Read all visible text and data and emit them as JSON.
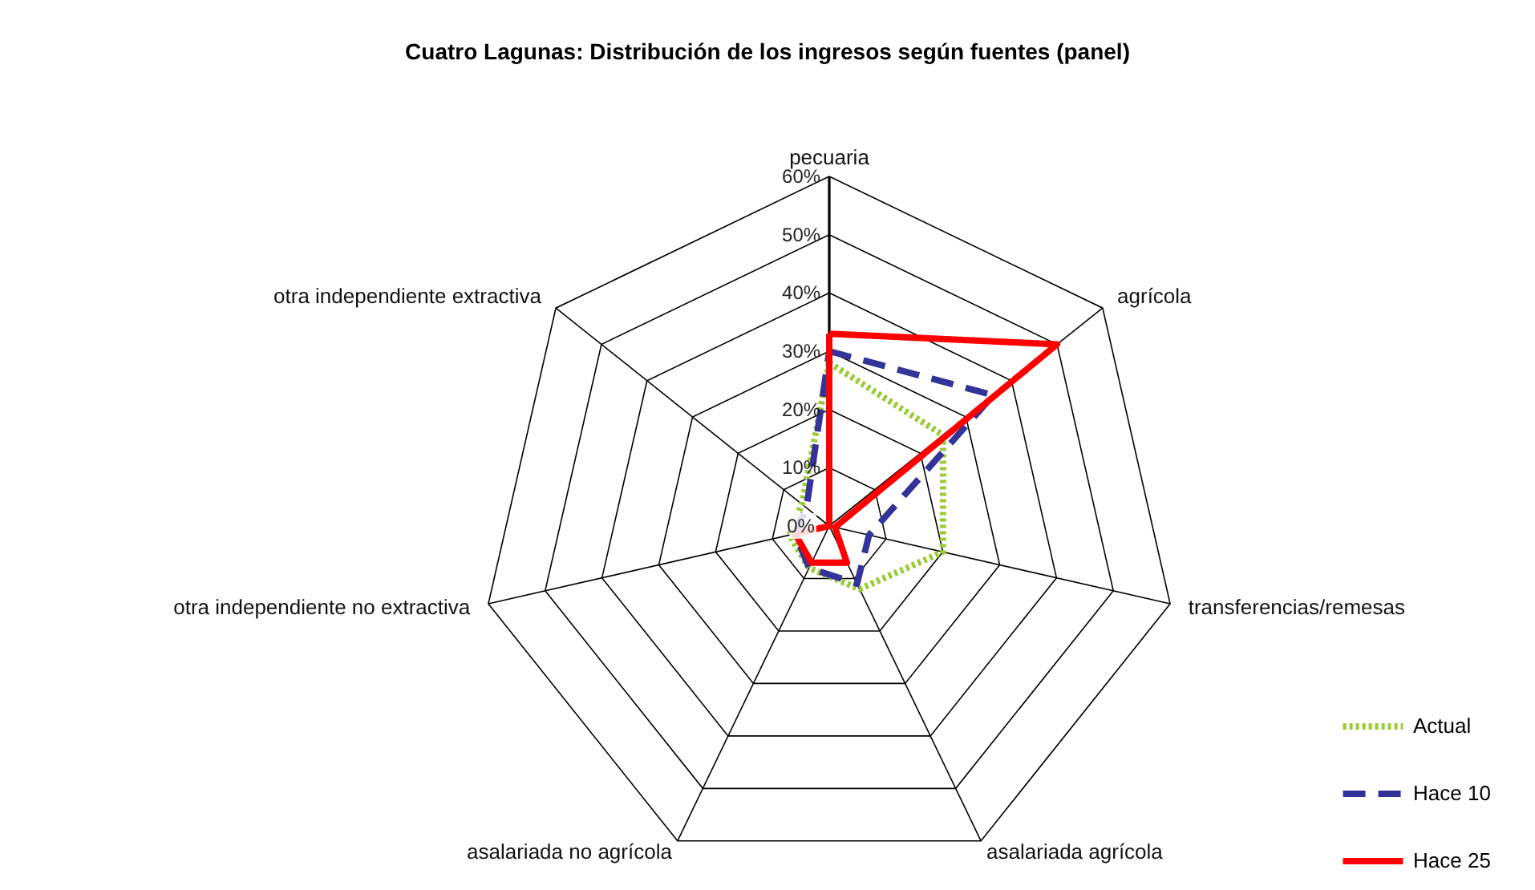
{
  "chart_data": {
    "type": "radar",
    "title": "Cuatro Lagunas: Distribución de los ingresos según fuentes (panel)",
    "categories": [
      "pecuaria",
      "agrícola",
      "transferencias/remesas",
      "asalariada agrícola",
      "asalariada no agrícola",
      "otra independiente  no extractiva",
      "otra independiente  extractiva"
    ],
    "series": [
      {
        "name": "Actual",
        "color": "#99cc33",
        "line_style": "dotted",
        "values": [
          28,
          25,
          20,
          12,
          8,
          7,
          6
        ]
      },
      {
        "name": "Hace 10",
        "color": "#333399",
        "line_style": "dashed",
        "values": [
          30,
          36,
          7,
          11,
          8,
          6,
          5
        ]
      },
      {
        "name": "Hace 25",
        "color": "#ff0000",
        "line_style": "solid",
        "values": [
          33,
          50,
          1,
          7,
          7,
          6,
          0
        ]
      }
    ],
    "ylim": [
      0,
      60
    ],
    "yticks": [
      {
        "value": 0,
        "label": "0%"
      },
      {
        "value": 10,
        "label": "10%"
      },
      {
        "value": 20,
        "label": "20%"
      },
      {
        "value": 30,
        "label": "30%"
      },
      {
        "value": 40,
        "label": "40%"
      },
      {
        "value": 50,
        "label": "50%"
      },
      {
        "value": 60,
        "label": "60%"
      }
    ],
    "grid": true,
    "legend": "bottom right",
    "marker": "none"
  }
}
